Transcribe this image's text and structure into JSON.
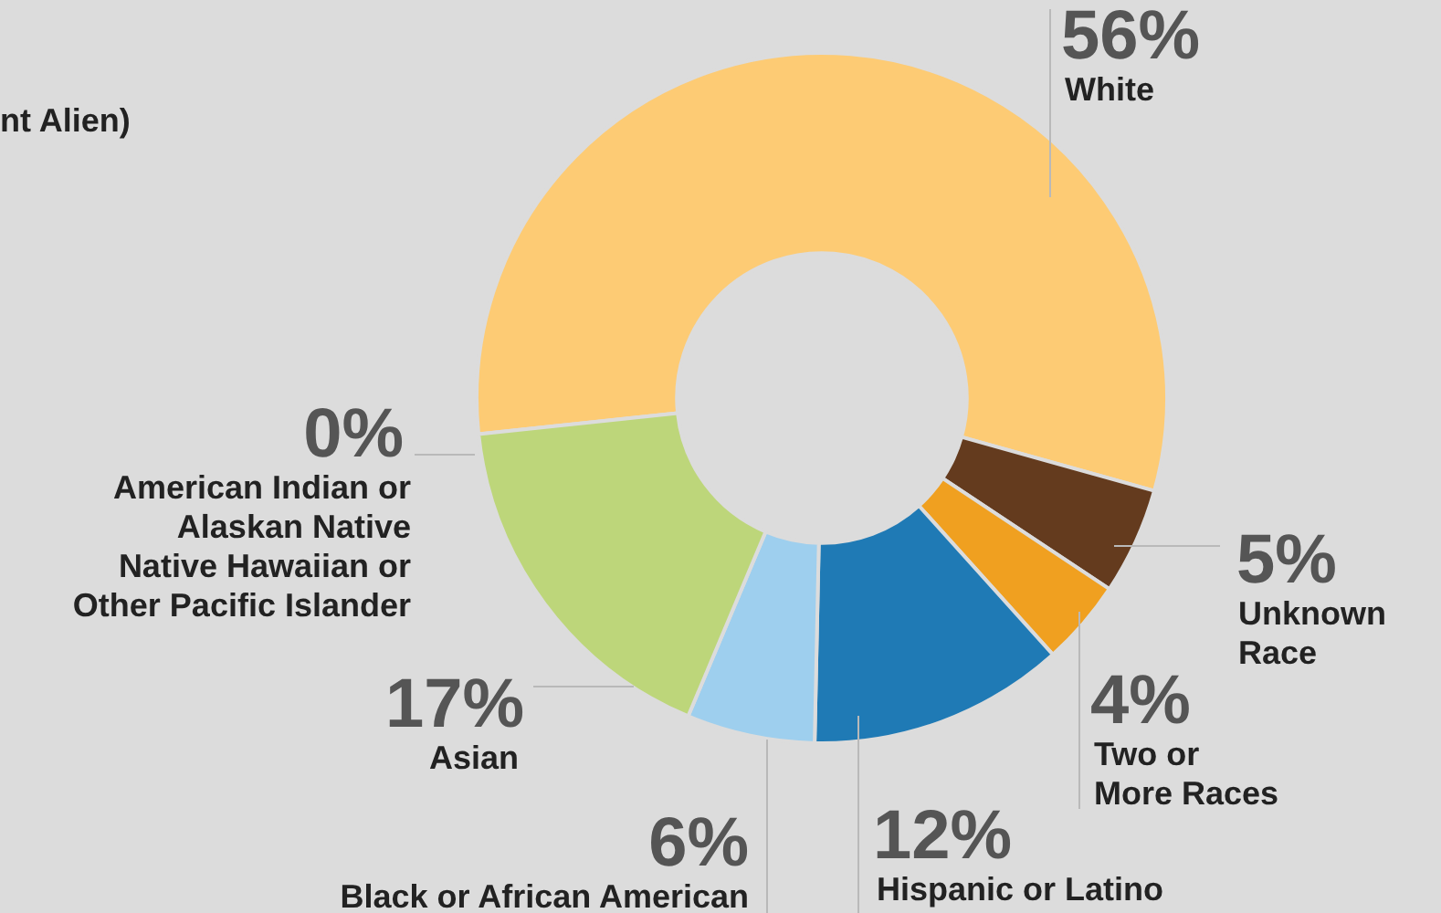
{
  "chart_data": {
    "type": "donut",
    "categories": [
      "White",
      "Unknown\nRace",
      "Two or\nMore Races",
      "Hispanic or Latino",
      "Black or African American",
      "Asian",
      "American Indian or\nAlaskan Native\nNative Hawaiian or\nOther Pacific Islander"
    ],
    "values": [
      56,
      5,
      4,
      12,
      6,
      17,
      0
    ],
    "colors": [
      "#fdcb74",
      "#643b1e",
      "#f0a020",
      "#1f7ab5",
      "#9ecfee",
      "#bdd67a",
      "#9ab86a"
    ],
    "value_labels": [
      "56%",
      "5%",
      "4%",
      "12%",
      "6%",
      "17%",
      "0%"
    ],
    "annotations": [
      "nt Alien)"
    ],
    "legend": false
  }
}
